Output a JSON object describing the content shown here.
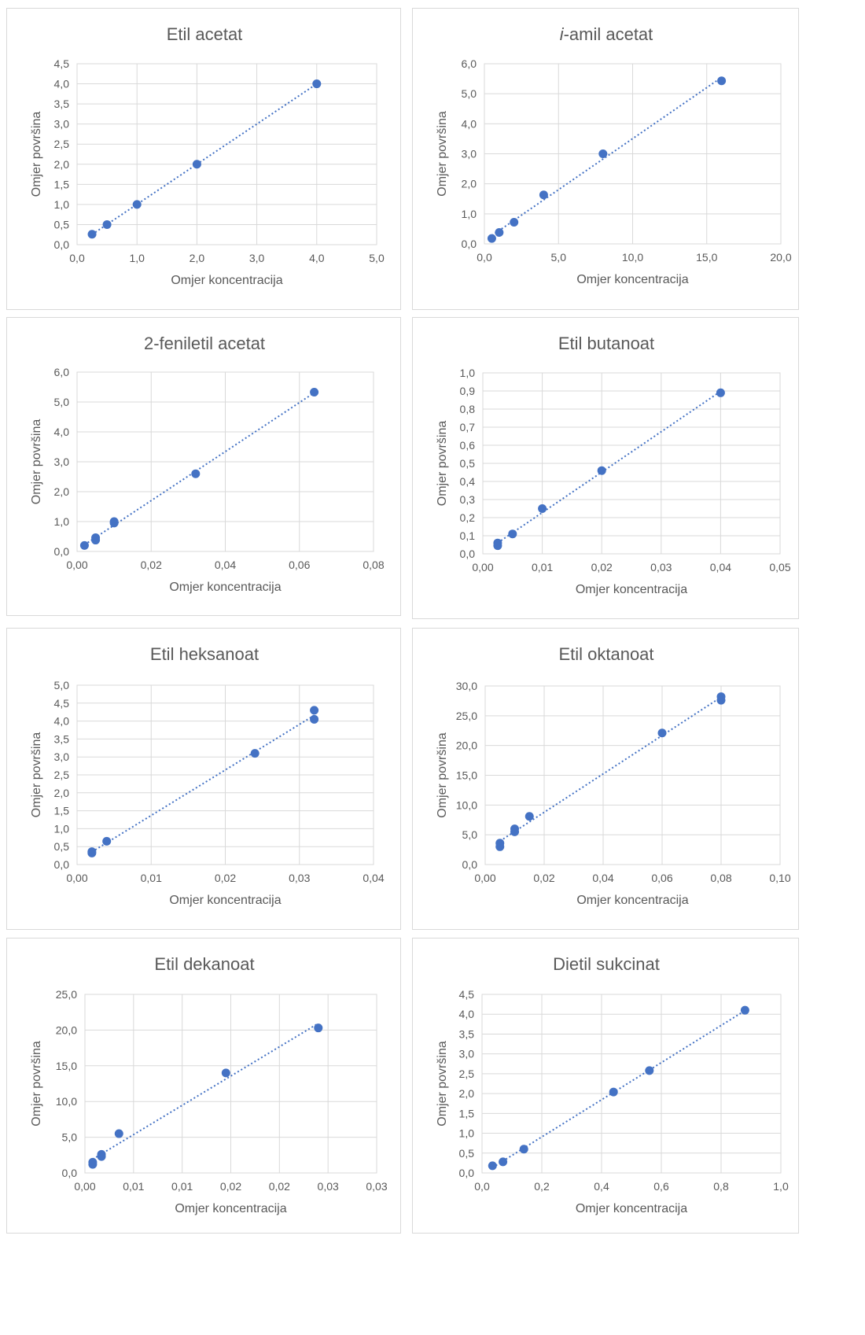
{
  "colors": {
    "marker": "#4472c4",
    "trendline": "#4472c4",
    "grid": "#d9d9d9",
    "text": "#595959"
  },
  "chart_data": [
    {
      "type": "scatter",
      "title": "Etil acetat",
      "title_prefix_italic": "",
      "xlabel": "Omjer koncentracija",
      "ylabel": "Omjer površina",
      "xlim": [
        0,
        5
      ],
      "ylim": [
        0,
        4.5
      ],
      "xticks": [
        "0,0",
        "1,0",
        "2,0",
        "3,0",
        "4,0",
        "5,0"
      ],
      "yticks": [
        "0,0",
        "0,5",
        "1,0",
        "1,5",
        "2,0",
        "2,5",
        "3,0",
        "3,5",
        "4,0",
        "4,5"
      ],
      "grid": true,
      "trendline": "linear",
      "series": [
        {
          "x": [
            0.25,
            0.5,
            1.0,
            2.0,
            4.0
          ],
          "y": [
            0.26,
            0.5,
            1.0,
            2.0,
            4.0
          ]
        }
      ]
    },
    {
      "type": "scatter",
      "title": "-amil acetat",
      "title_prefix_italic": "i",
      "xlabel": "Omjer koncentracija",
      "ylabel": "Omjer površina",
      "xlim": [
        0,
        20
      ],
      "ylim": [
        0,
        6
      ],
      "xticks": [
        "0,0",
        "5,0",
        "10,0",
        "15,0",
        "20,0"
      ],
      "yticks": [
        "0,0",
        "1,0",
        "2,0",
        "3,0",
        "4,0",
        "5,0",
        "6,0"
      ],
      "grid": true,
      "trendline": "linear",
      "series": [
        {
          "x": [
            0.5,
            1.0,
            2.0,
            4.0,
            8.0,
            16.0
          ],
          "y": [
            0.18,
            0.38,
            0.72,
            1.63,
            3.0,
            5.43
          ]
        }
      ]
    },
    {
      "type": "scatter",
      "title": "2-feniletil acetat",
      "title_prefix_italic": "",
      "xlabel": "Omjer koncentracija",
      "ylabel": "Omjer površina",
      "xlim": [
        0,
        0.08
      ],
      "ylim": [
        0,
        6
      ],
      "xticks": [
        "0,00",
        "0,02",
        "0,04",
        "0,06",
        "0,08"
      ],
      "yticks": [
        "0,0",
        "1,0",
        "2,0",
        "3,0",
        "4,0",
        "5,0",
        "6,0"
      ],
      "grid": true,
      "trendline": "linear",
      "series": [
        {
          "x": [
            0.002,
            0.005,
            0.005,
            0.01,
            0.01,
            0.032,
            0.064
          ],
          "y": [
            0.2,
            0.38,
            0.46,
            0.95,
            1.0,
            2.6,
            5.33
          ]
        }
      ]
    },
    {
      "type": "scatter",
      "title": "Etil butanoat",
      "title_prefix_italic": "",
      "xlabel": "Omjer koncentracija",
      "ylabel": "Omjer površina",
      "xlim": [
        0,
        0.05
      ],
      "ylim": [
        0,
        1.0
      ],
      "xticks": [
        "0,00",
        "0,01",
        "0,02",
        "0,03",
        "0,04",
        "0,05"
      ],
      "yticks": [
        "0,0",
        "0,1",
        "0,2",
        "0,3",
        "0,4",
        "0,5",
        "0,6",
        "0,7",
        "0,8",
        "0,9",
        "1,0"
      ],
      "grid": true,
      "trendline": "linear",
      "series": [
        {
          "x": [
            0.0025,
            0.0025,
            0.005,
            0.01,
            0.02,
            0.04
          ],
          "y": [
            0.045,
            0.06,
            0.11,
            0.25,
            0.46,
            0.89
          ]
        }
      ]
    },
    {
      "type": "scatter",
      "title": "Etil heksanoat",
      "title_prefix_italic": "",
      "xlabel": "Omjer koncentracija",
      "ylabel": "Omjer površina",
      "xlim": [
        0,
        0.04
      ],
      "ylim": [
        0,
        5.0
      ],
      "xticks": [
        "0,00",
        "0,01",
        "0,02",
        "0,03",
        "0,04"
      ],
      "yticks": [
        "0,0",
        "0,5",
        "1,0",
        "1,5",
        "2,0",
        "2,5",
        "3,0",
        "3,5",
        "4,0",
        "4,5",
        "5,0"
      ],
      "grid": true,
      "trendline": "linear",
      "series": [
        {
          "x": [
            0.002,
            0.002,
            0.004,
            0.024,
            0.032,
            0.032
          ],
          "y": [
            0.32,
            0.36,
            0.65,
            3.1,
            4.05,
            4.3
          ]
        }
      ]
    },
    {
      "type": "scatter",
      "title": "Etil oktanoat",
      "title_prefix_italic": "",
      "xlabel": "Omjer koncentracija",
      "ylabel": "Omjer površina",
      "xlim": [
        0,
        0.1
      ],
      "ylim": [
        0,
        30
      ],
      "xticks": [
        "0,00",
        "0,02",
        "0,04",
        "0,06",
        "0,08",
        "0,10"
      ],
      "yticks": [
        "0,0",
        "5,0",
        "10,0",
        "15,0",
        "20,0",
        "25,0",
        "30,0"
      ],
      "grid": true,
      "trendline": "linear",
      "series": [
        {
          "x": [
            0.005,
            0.005,
            0.01,
            0.01,
            0.015,
            0.06,
            0.08,
            0.08
          ],
          "y": [
            3.0,
            3.6,
            5.5,
            6.0,
            8.1,
            22.1,
            27.6,
            28.2
          ]
        }
      ]
    },
    {
      "type": "scatter",
      "title": "Etil dekanoat",
      "title_prefix_italic": "",
      "xlabel": "Omjer koncentracija",
      "ylabel": "Omjer površina",
      "xlim": [
        0,
        0.03
      ],
      "ylim": [
        0,
        25
      ],
      "xticks": [
        "0,00",
        "0,01",
        "0,01",
        "0,02",
        "0,02",
        "0,03",
        "0,03"
      ],
      "yticks": [
        "0,0",
        "5,0",
        "10,0",
        "15,0",
        "20,0",
        "25,0"
      ],
      "grid": true,
      "trendline": "linear",
      "series": [
        {
          "x": [
            0.0008,
            0.0008,
            0.0017,
            0.0017,
            0.0035,
            0.0145,
            0.024
          ],
          "y": [
            1.2,
            1.5,
            2.3,
            2.6,
            5.5,
            14.0,
            20.3
          ]
        }
      ]
    },
    {
      "type": "scatter",
      "title": "Dietil sukcinat",
      "title_prefix_italic": "",
      "xlabel": "Omjer koncentracija",
      "ylabel": "Omjer površina",
      "xlim": [
        0,
        1.0
      ],
      "ylim": [
        0,
        4.5
      ],
      "xticks": [
        "0,0",
        "0,2",
        "0,4",
        "0,6",
        "0,8",
        "1,0"
      ],
      "yticks": [
        "0,0",
        "0,5",
        "1,0",
        "1,5",
        "2,0",
        "2,5",
        "3,0",
        "3,5",
        "4,0",
        "4,5"
      ],
      "grid": true,
      "trendline": "linear",
      "series": [
        {
          "x": [
            0.035,
            0.07,
            0.14,
            0.44,
            0.56,
            0.88
          ],
          "y": [
            0.18,
            0.28,
            0.6,
            2.04,
            2.58,
            4.1
          ]
        }
      ]
    }
  ]
}
